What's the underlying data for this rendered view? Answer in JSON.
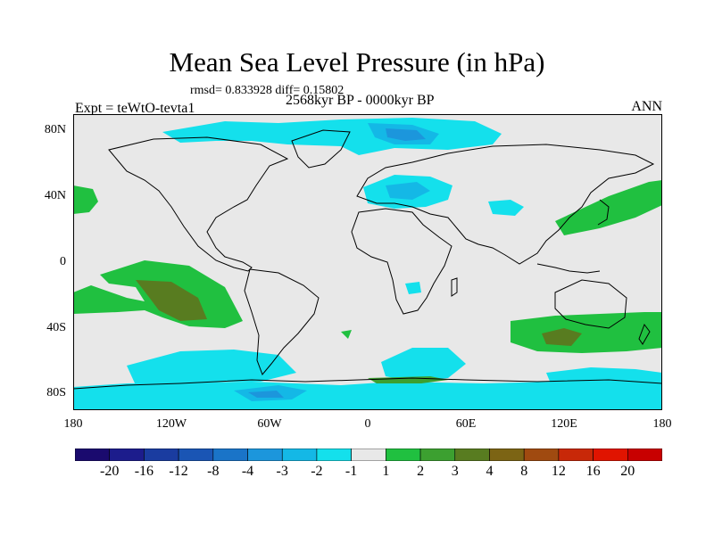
{
  "title": "Mean Sea Level Pressure (in hPa)",
  "stats": "rmsd= 0.833928  diff= 0.15802",
  "period": "2568kyr BP - 0000kyr BP",
  "experiment": "Expt = teWtO-tevta1",
  "season": "ANN",
  "axes": {
    "y_ticks": [
      "80N",
      "40N",
      "0",
      "40S",
      "80S"
    ],
    "x_ticks": [
      "180",
      "120W",
      "60W",
      "0",
      "60E",
      "120E",
      "180"
    ]
  },
  "colorbar": {
    "labels": [
      "-20",
      "-16",
      "-12",
      "-8",
      "-4",
      "-3",
      "-2",
      "-1",
      "1",
      "2",
      "3",
      "4",
      "8",
      "12",
      "16",
      "20"
    ],
    "colors": [
      "#1a0a6e",
      "#1c1c8c",
      "#1a3ca0",
      "#1a55b4",
      "#1a74c8",
      "#1c96dc",
      "#14b8e6",
      "#14e0ec",
      "#e8e8e8",
      "#20c040",
      "#3ca030",
      "#587c20",
      "#7c6414",
      "#a04a10",
      "#c82808",
      "#e01400",
      "#c80000"
    ]
  },
  "map_colors": {
    "background": "#e8e8e8",
    "neg1": "#14e0ec",
    "neg2": "#14b8e6",
    "neg3": "#1c96dc",
    "neg4": "#1a55b4",
    "pos1": "#20c040",
    "pos2": "#3ca030",
    "pos3": "#587c20"
  }
}
